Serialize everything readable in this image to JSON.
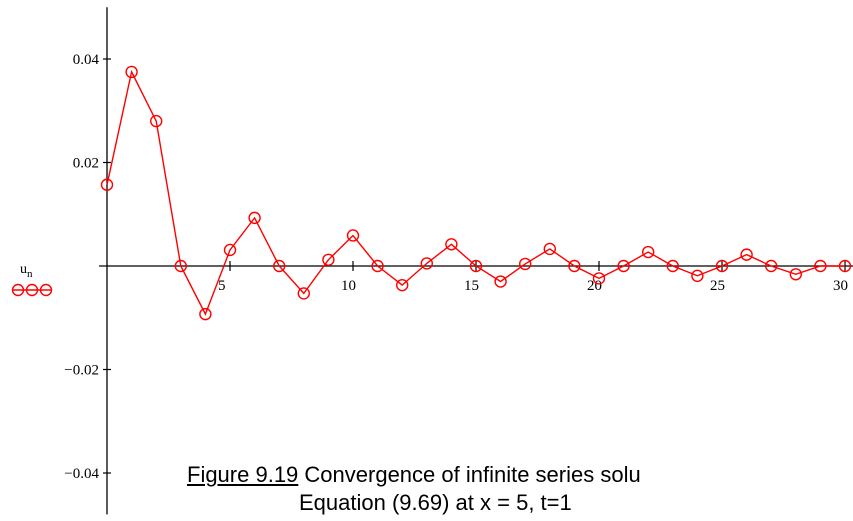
{
  "chart_data": {
    "type": "line",
    "marker": "circle",
    "line_color": "#ff0000",
    "x": [
      0,
      1,
      2,
      3,
      4,
      5,
      6,
      7,
      8,
      9,
      10,
      11,
      12,
      13,
      14,
      15,
      16,
      17,
      18,
      19,
      20,
      21,
      22,
      23,
      24,
      25,
      26,
      27,
      28,
      29,
      30
    ],
    "series": [
      {
        "name": "u",
        "name_subscript": "n",
        "values": [
          0.0157,
          0.0375,
          0.028,
          0.0,
          -0.0093,
          0.0031,
          0.0093,
          0.0,
          -0.0053,
          0.0012,
          0.0059,
          0.0,
          -0.0037,
          0.0005,
          0.0042,
          0.0,
          -0.003,
          0.0004,
          0.0033,
          0.0,
          -0.0024,
          0.0,
          0.0027,
          0.0,
          -0.0019,
          0.0,
          0.0022,
          0.0,
          -0.0016,
          0.0,
          0.0
        ]
      }
    ],
    "x_ticks": [
      5,
      10,
      15,
      20,
      25,
      30
    ],
    "x_tick_labels": [
      "5",
      "10",
      "15",
      "20",
      "25",
      "30"
    ],
    "y_ticks": [
      0.04,
      0.02,
      -0.02,
      -0.04
    ],
    "y_tick_labels": [
      "0.04",
      "0.02",
      "−0.02",
      "−0.04"
    ],
    "xlim": [
      0,
      30
    ],
    "ylim": [
      -0.048,
      0.05
    ],
    "grid": false,
    "legend_position": "left"
  },
  "caption": {
    "figure_ref": "Figure 9.19",
    "line1_rest": " Convergence of infinite series solu",
    "line2": "Equation (9.69) at x = 5, t=1"
  }
}
